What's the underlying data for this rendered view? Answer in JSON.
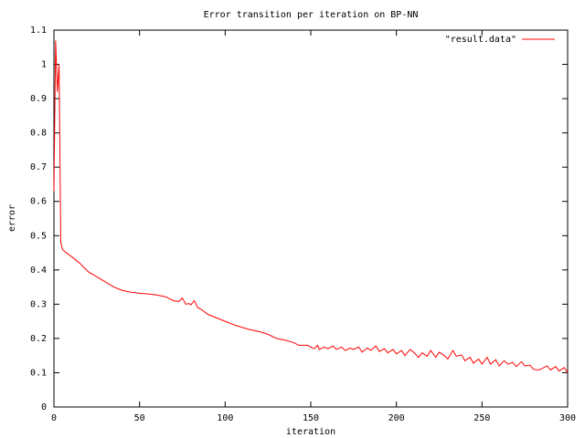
{
  "chart_data": {
    "type": "line",
    "title": "Error transition per iteration on BP-NN",
    "x_label": "iteration",
    "y_label": "error",
    "x": [
      0,
      1,
      2,
      3,
      4,
      5,
      6,
      10,
      15,
      20,
      25,
      30,
      35,
      40,
      45,
      50,
      55,
      60,
      65,
      70,
      73,
      75,
      77,
      79,
      80,
      82,
      84,
      86,
      90,
      95,
      100,
      105,
      110,
      115,
      120,
      125,
      130,
      135,
      140,
      143,
      148,
      150,
      152,
      154,
      155,
      158,
      160,
      163,
      165,
      168,
      170,
      173,
      175,
      178,
      180,
      183,
      185,
      188,
      190,
      193,
      195,
      198,
      200,
      203,
      205,
      208,
      210,
      213,
      215,
      218,
      220,
      223,
      225,
      228,
      230,
      233,
      235,
      238,
      240,
      243,
      245,
      248,
      250,
      253,
      255,
      258,
      260,
      263,
      265,
      268,
      270,
      273,
      275,
      278,
      280,
      283,
      285,
      288,
      290,
      293,
      295,
      298,
      300
    ],
    "series": [
      {
        "name": "\"result.data\"",
        "color": "#ff0000",
        "values": [
          0.63,
          1.07,
          0.92,
          1.0,
          0.48,
          0.46,
          0.455,
          0.44,
          0.42,
          0.395,
          0.38,
          0.365,
          0.35,
          0.34,
          0.335,
          0.332,
          0.33,
          0.327,
          0.322,
          0.31,
          0.308,
          0.318,
          0.3,
          0.302,
          0.298,
          0.31,
          0.29,
          0.285,
          0.27,
          0.26,
          0.25,
          0.24,
          0.232,
          0.225,
          0.22,
          0.212,
          0.2,
          0.195,
          0.188,
          0.18,
          0.18,
          0.175,
          0.17,
          0.18,
          0.168,
          0.175,
          0.17,
          0.178,
          0.168,
          0.175,
          0.165,
          0.172,
          0.168,
          0.175,
          0.16,
          0.172,
          0.165,
          0.178,
          0.162,
          0.17,
          0.158,
          0.168,
          0.155,
          0.165,
          0.15,
          0.168,
          0.16,
          0.145,
          0.158,
          0.148,
          0.165,
          0.145,
          0.16,
          0.15,
          0.14,
          0.165,
          0.148,
          0.152,
          0.135,
          0.145,
          0.128,
          0.14,
          0.125,
          0.145,
          0.125,
          0.138,
          0.12,
          0.135,
          0.125,
          0.13,
          0.118,
          0.132,
          0.12,
          0.122,
          0.11,
          0.108,
          0.112,
          0.12,
          0.108,
          0.118,
          0.105,
          0.115,
          0.1
        ]
      }
    ],
    "xlim": [
      0,
      300
    ],
    "xticks": [
      0,
      50,
      100,
      150,
      200,
      250,
      300
    ],
    "ylim": [
      0,
      1.1
    ],
    "yticks": [
      0,
      0.1,
      0.2,
      0.3,
      0.4,
      0.5,
      0.6,
      0.7,
      0.8,
      0.9,
      1,
      1.1
    ],
    "grid": false,
    "legend": "top-right"
  }
}
